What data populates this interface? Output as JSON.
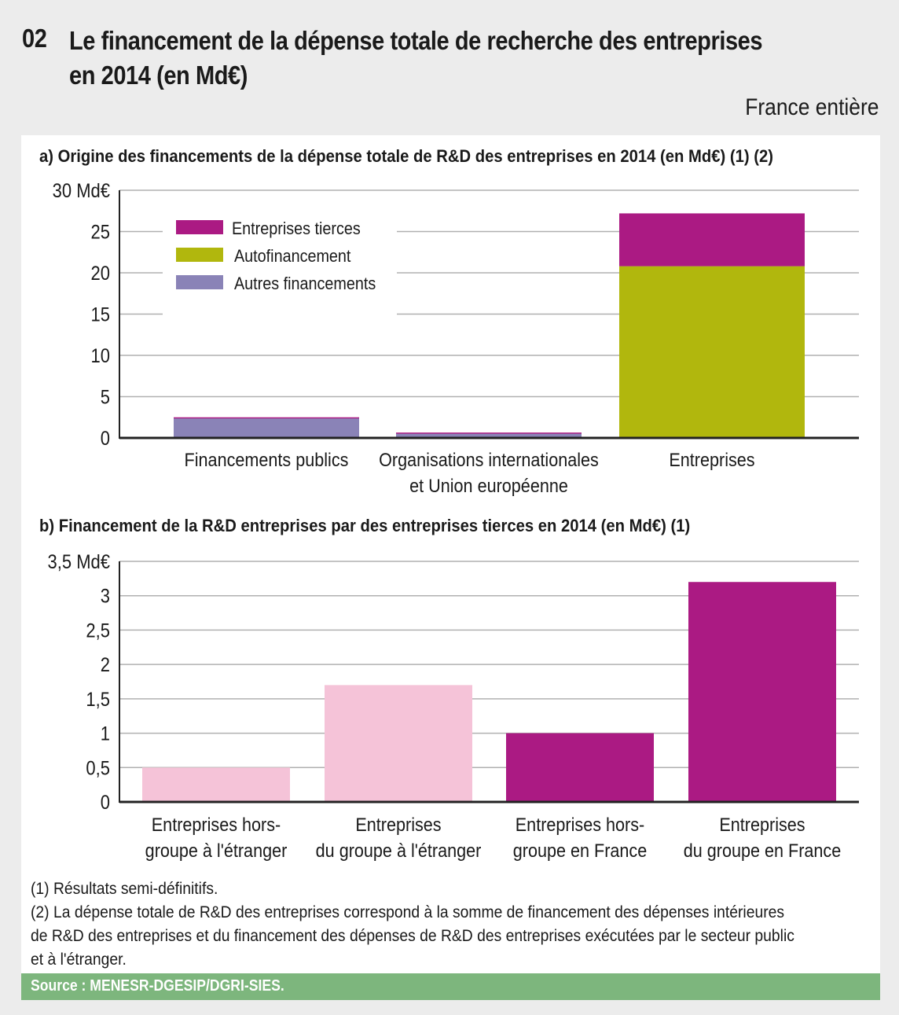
{
  "header": {
    "number": "02",
    "title_line1": "Le financement de la dépense totale de recherche des entreprises",
    "title_line2": "en 2014 (en Md€)",
    "scope": "France entière"
  },
  "colors": {
    "entreprises_tierces": "#ab1a83",
    "autofinancement": "#b1b70d",
    "autres_financements": "#8a83b7",
    "hors_groupe_etranger": "#f5c3d8",
    "source_band": "#7db67d"
  },
  "chart_data": [
    {
      "type": "bar",
      "stacked": true,
      "title": "a) Origine des financements de la dépense totale de R&D des entreprises en 2014 (en Md€) (1) (2)",
      "xlabel": "",
      "ylabel": "Md€",
      "ylim": [
        0,
        30
      ],
      "yticks": [
        0,
        5,
        10,
        15,
        20,
        25,
        30
      ],
      "ytick_labels": [
        "0",
        "5",
        "10",
        "15",
        "20",
        "25",
        "30 Md€"
      ],
      "grid": true,
      "legend_position": "top-left",
      "categories": [
        [
          "Financements publics"
        ],
        [
          "Organisations internationales",
          "et Union européenne"
        ],
        [
          "Entreprises"
        ]
      ],
      "series": [
        {
          "name": "Autres financements",
          "color": "#8a83b7",
          "values": [
            2.4,
            0.6,
            0
          ]
        },
        {
          "name": "Autofinancement",
          "color": "#b1b70d",
          "values": [
            0,
            0,
            20.8
          ]
        },
        {
          "name": "Entreprises tierces",
          "color": "#ab1a83",
          "values": [
            0.1,
            0.05,
            6.4
          ]
        }
      ],
      "legend": [
        "Entreprises tierces",
        "Autofinancement",
        "Autres financements"
      ]
    },
    {
      "type": "bar",
      "stacked": false,
      "title": "b) Financement de la R&D entreprises par des entreprises tierces en 2014 (en Md€) (1)",
      "xlabel": "",
      "ylabel": "Md€",
      "ylim": [
        0,
        3.5
      ],
      "yticks": [
        0,
        0.5,
        1,
        1.5,
        2,
        2.5,
        3,
        3.5
      ],
      "ytick_labels": [
        "0",
        "0,5",
        "1",
        "1,5",
        "2",
        "2,5",
        "3",
        "3,5 Md€"
      ],
      "grid": true,
      "categories": [
        [
          "Entreprises hors-",
          "groupe à l'étranger"
        ],
        [
          "Entreprises",
          "du groupe à l'étranger"
        ],
        [
          "Entreprises hors-",
          "groupe en France"
        ],
        [
          "Entreprises",
          "du groupe en France"
        ]
      ],
      "values": [
        0.5,
        1.7,
        1.0,
        3.2
      ],
      "colors": [
        "#f5c3d8",
        "#f5c3d8",
        "#ab1a83",
        "#ab1a83"
      ]
    }
  ],
  "notes": [
    "(1) Résultats semi-définitifs.",
    "(2) La dépense totale de R&D des entreprises correspond à la somme de financement  des dépenses intérieures",
    "de R&D des entreprises et du financement des dépenses de R&D des entreprises  exécutées par le secteur public",
    "et à l'étranger."
  ],
  "source": "Source : MENESR-DGESIP/DGRI-SIES."
}
